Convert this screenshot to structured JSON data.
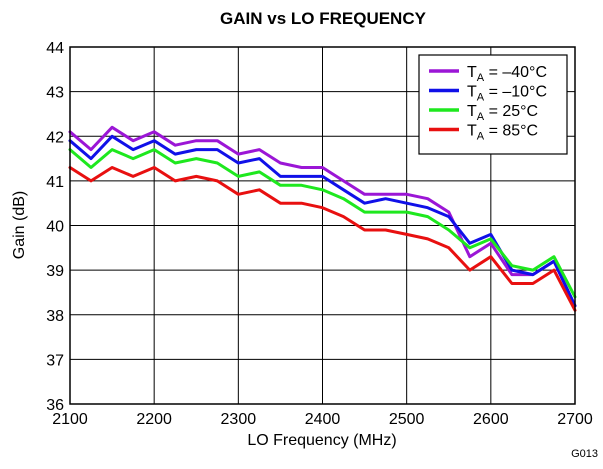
{
  "chart_data": {
    "type": "line",
    "title": "GAIN vs LO FREQUENCY",
    "xlabel": "LO Frequency (MHz)",
    "ylabel": "Gain (dB)",
    "figure_id": "G013",
    "xlim": [
      2100,
      2700
    ],
    "ylim": [
      36,
      44
    ],
    "xticks": [
      2100,
      2200,
      2300,
      2400,
      2500,
      2600,
      2700
    ],
    "yticks": [
      36,
      37,
      38,
      39,
      40,
      41,
      42,
      43,
      44
    ],
    "grid": true,
    "legend_position": "top-right",
    "x": [
      2100,
      2125,
      2150,
      2175,
      2200,
      2225,
      2250,
      2275,
      2300,
      2325,
      2350,
      2375,
      2400,
      2425,
      2450,
      2475,
      2500,
      2525,
      2550,
      2575,
      2600,
      2625,
      2650,
      2675,
      2700
    ],
    "series": [
      {
        "name": "T_A = –40°C",
        "legend_parts": [
          "T",
          "A",
          " = –40°C"
        ],
        "color": "#9b16d6",
        "values": [
          42.1,
          41.7,
          42.2,
          41.9,
          42.1,
          41.8,
          41.9,
          41.9,
          41.6,
          41.7,
          41.4,
          41.3,
          41.3,
          41.0,
          40.7,
          40.7,
          40.7,
          40.6,
          40.3,
          39.3,
          39.6,
          38.9,
          38.9,
          39.2,
          38.2
        ]
      },
      {
        "name": "T_A = –10°C",
        "legend_parts": [
          "T",
          "A",
          " = –10°C"
        ],
        "color": "#1010e8",
        "values": [
          41.9,
          41.5,
          42.0,
          41.7,
          41.9,
          41.6,
          41.7,
          41.7,
          41.4,
          41.5,
          41.1,
          41.1,
          41.1,
          40.8,
          40.5,
          40.6,
          40.5,
          40.4,
          40.2,
          39.6,
          39.8,
          39.0,
          38.9,
          39.2,
          38.2
        ]
      },
      {
        "name": "T_A = 25°C",
        "legend_parts": [
          "T",
          "A",
          " = 25°C"
        ],
        "color": "#1ee81e",
        "values": [
          41.7,
          41.3,
          41.7,
          41.5,
          41.7,
          41.4,
          41.5,
          41.4,
          41.1,
          41.2,
          40.9,
          40.9,
          40.8,
          40.6,
          40.3,
          40.3,
          40.3,
          40.2,
          39.9,
          39.5,
          39.7,
          39.1,
          39.0,
          39.3,
          38.4
        ]
      },
      {
        "name": "T_A = 85°C",
        "legend_parts": [
          "T",
          "A",
          " = 85°C"
        ],
        "color": "#e81010",
        "values": [
          41.3,
          41.0,
          41.3,
          41.1,
          41.3,
          41.0,
          41.1,
          41.0,
          40.7,
          40.8,
          40.5,
          40.5,
          40.4,
          40.2,
          39.9,
          39.9,
          39.8,
          39.7,
          39.5,
          39.0,
          39.3,
          38.7,
          38.7,
          39.0,
          38.1
        ]
      }
    ]
  }
}
